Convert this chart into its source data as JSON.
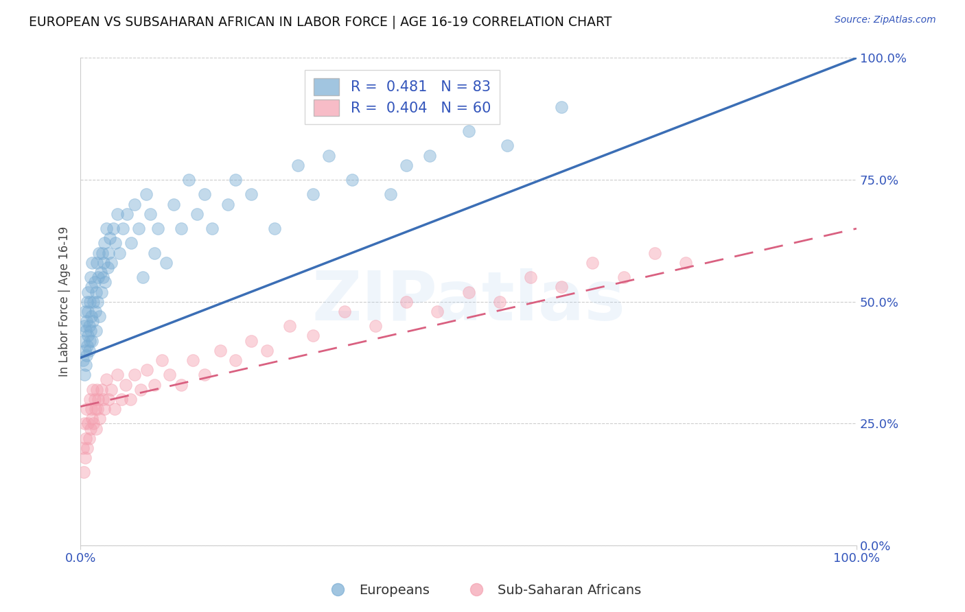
{
  "title": "EUROPEAN VS SUBSAHARAN AFRICAN IN LABOR FORCE | AGE 16-19 CORRELATION CHART",
  "source": "Source: ZipAtlas.com",
  "ylabel": "In Labor Force | Age 16-19",
  "r_european": 0.481,
  "n_european": 83,
  "r_african": 0.404,
  "n_african": 60,
  "blue_color": "#7AADD4",
  "pink_color": "#F4A0B0",
  "blue_line_color": "#3B6EB5",
  "pink_line_color": "#D96080",
  "watermark": "ZIPatlas",
  "xlim": [
    0,
    1
  ],
  "ylim": [
    0,
    1
  ],
  "yticks": [
    0.0,
    0.25,
    0.5,
    0.75,
    1.0
  ],
  "xticks": [
    0.0,
    1.0
  ],
  "blue_line_x0": 0.0,
  "blue_line_y0": 0.385,
  "blue_line_x1": 1.0,
  "blue_line_y1": 1.0,
  "pink_line_x0": 0.0,
  "pink_line_y0": 0.285,
  "pink_line_x1": 1.0,
  "pink_line_y1": 0.65,
  "european_x": [
    0.003,
    0.004,
    0.005,
    0.005,
    0.006,
    0.006,
    0.007,
    0.007,
    0.008,
    0.008,
    0.009,
    0.009,
    0.01,
    0.01,
    0.01,
    0.011,
    0.011,
    0.012,
    0.012,
    0.013,
    0.013,
    0.014,
    0.014,
    0.015,
    0.015,
    0.016,
    0.017,
    0.018,
    0.019,
    0.02,
    0.02,
    0.021,
    0.022,
    0.023,
    0.024,
    0.025,
    0.026,
    0.027,
    0.028,
    0.029,
    0.03,
    0.031,
    0.032,
    0.033,
    0.035,
    0.036,
    0.038,
    0.04,
    0.042,
    0.045,
    0.048,
    0.05,
    0.055,
    0.06,
    0.065,
    0.07,
    0.075,
    0.08,
    0.085,
    0.09,
    0.095,
    0.1,
    0.11,
    0.12,
    0.13,
    0.14,
    0.15,
    0.16,
    0.17,
    0.19,
    0.2,
    0.22,
    0.25,
    0.28,
    0.3,
    0.32,
    0.35,
    0.4,
    0.42,
    0.45,
    0.5,
    0.55,
    0.62
  ],
  "european_y": [
    0.38,
    0.42,
    0.35,
    0.45,
    0.4,
    0.48,
    0.37,
    0.44,
    0.39,
    0.46,
    0.41,
    0.5,
    0.43,
    0.48,
    0.52,
    0.4,
    0.45,
    0.42,
    0.5,
    0.44,
    0.55,
    0.47,
    0.53,
    0.42,
    0.58,
    0.46,
    0.5,
    0.54,
    0.48,
    0.44,
    0.52,
    0.58,
    0.5,
    0.55,
    0.6,
    0.47,
    0.56,
    0.52,
    0.6,
    0.55,
    0.58,
    0.62,
    0.54,
    0.65,
    0.57,
    0.6,
    0.63,
    0.58,
    0.65,
    0.62,
    0.68,
    0.6,
    0.65,
    0.68,
    0.62,
    0.7,
    0.65,
    0.55,
    0.72,
    0.68,
    0.6,
    0.65,
    0.58,
    0.7,
    0.65,
    0.75,
    0.68,
    0.72,
    0.65,
    0.7,
    0.75,
    0.72,
    0.65,
    0.78,
    0.72,
    0.8,
    0.75,
    0.72,
    0.78,
    0.8,
    0.85,
    0.82,
    0.9
  ],
  "african_x": [
    0.003,
    0.004,
    0.005,
    0.006,
    0.007,
    0.008,
    0.009,
    0.01,
    0.011,
    0.012,
    0.013,
    0.014,
    0.015,
    0.016,
    0.017,
    0.018,
    0.019,
    0.02,
    0.021,
    0.022,
    0.023,
    0.025,
    0.027,
    0.029,
    0.031,
    0.033,
    0.036,
    0.04,
    0.044,
    0.048,
    0.053,
    0.058,
    0.064,
    0.07,
    0.078,
    0.086,
    0.095,
    0.105,
    0.115,
    0.13,
    0.145,
    0.16,
    0.18,
    0.2,
    0.22,
    0.24,
    0.27,
    0.3,
    0.34,
    0.38,
    0.42,
    0.46,
    0.5,
    0.54,
    0.58,
    0.62,
    0.66,
    0.7,
    0.74,
    0.78
  ],
  "african_y": [
    0.2,
    0.15,
    0.25,
    0.18,
    0.22,
    0.28,
    0.2,
    0.25,
    0.22,
    0.3,
    0.24,
    0.28,
    0.26,
    0.32,
    0.25,
    0.3,
    0.28,
    0.24,
    0.32,
    0.28,
    0.3,
    0.26,
    0.32,
    0.3,
    0.28,
    0.34,
    0.3,
    0.32,
    0.28,
    0.35,
    0.3,
    0.33,
    0.3,
    0.35,
    0.32,
    0.36,
    0.33,
    0.38,
    0.35,
    0.33,
    0.38,
    0.35,
    0.4,
    0.38,
    0.42,
    0.4,
    0.45,
    0.43,
    0.48,
    0.45,
    0.5,
    0.48,
    0.52,
    0.5,
    0.55,
    0.53,
    0.58,
    0.55,
    0.6,
    0.58
  ]
}
